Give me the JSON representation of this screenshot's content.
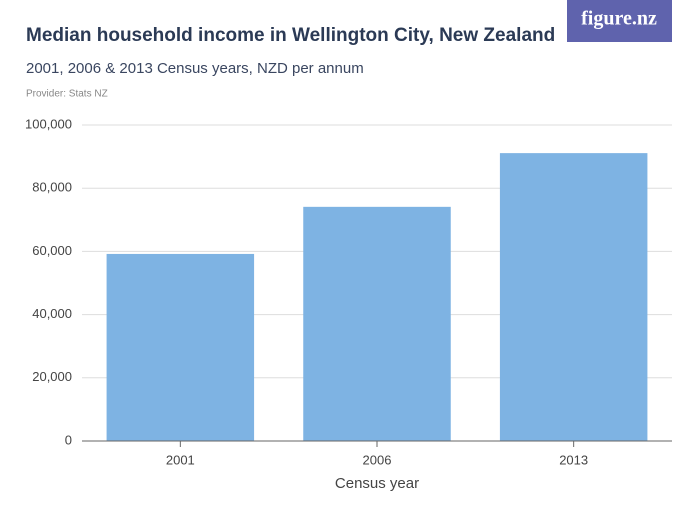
{
  "chart_data": {
    "type": "bar",
    "title": "Median household income in Wellington City, New Zealand",
    "subtitle": "2001, 2006 & 2013 Census years, NZD per annum",
    "provider": "Provider: Stats NZ",
    "logo": "figure.nz",
    "x_label": "Census year",
    "categories": [
      "2001",
      "2006",
      "2013"
    ],
    "values": [
      59200,
      74100,
      91100
    ],
    "color": "#7eb3e3",
    "ylim": [
      0,
      100000
    ],
    "yticks": [
      0,
      {
        "value": 20000,
        "label": "20,000"
      },
      {
        "value": 40000,
        "label": "40,000"
      },
      {
        "value": 60000,
        "label": "60,000"
      },
      {
        "value": 80000,
        "label": "80,000"
      },
      {
        "value": 100000,
        "label": "100,000"
      }
    ],
    "grid": true
  }
}
